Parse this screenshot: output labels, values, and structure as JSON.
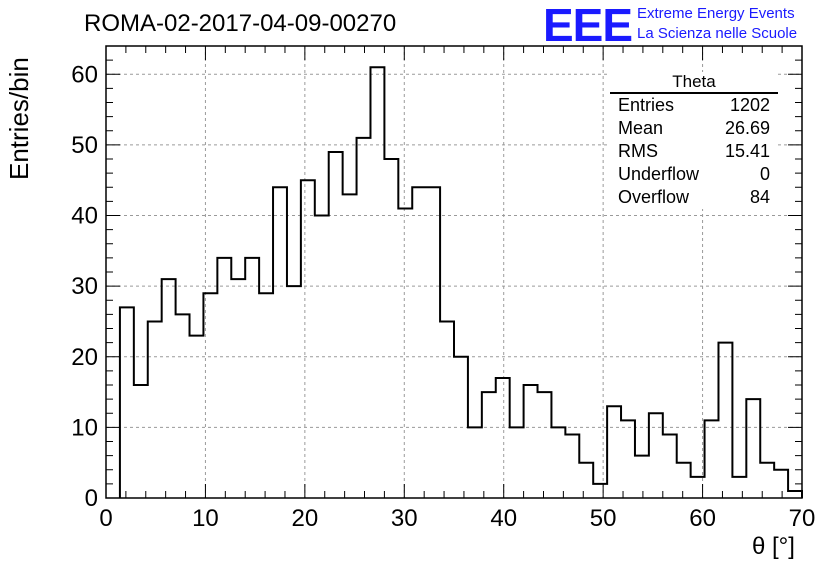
{
  "header": {
    "run_title": "ROMA-02-2017-04-09-00270",
    "logo": "EEE",
    "logo_line1": "Extreme Energy Events",
    "logo_line2": "La Scienza nelle Scuole"
  },
  "stats_box": {
    "title": "Theta",
    "rows": [
      {
        "label": "Entries",
        "value": "1202"
      },
      {
        "label": "Mean",
        "value": "26.69"
      },
      {
        "label": "RMS",
        "value": "15.41"
      },
      {
        "label": "Underflow",
        "value": "0"
      },
      {
        "label": "Overflow",
        "value": "84"
      }
    ]
  },
  "colors": {
    "line": "#000000",
    "grid": "#9a9a9a",
    "logo": "#1a1aff"
  },
  "chart_data": {
    "type": "bar",
    "style": "step-histogram",
    "xlabel": "θ [°]",
    "ylabel": "Entries/bin",
    "xlim": [
      0,
      70
    ],
    "ylim": [
      0,
      64
    ],
    "xticks": [
      0,
      10,
      20,
      30,
      40,
      50,
      60,
      70
    ],
    "yticks": [
      0,
      10,
      20,
      30,
      40,
      50,
      60
    ],
    "grid": true,
    "bin_start": 1.4,
    "bin_width": 1.4,
    "values": [
      27,
      16,
      25,
      31,
      26,
      23,
      29,
      34,
      31,
      34,
      29,
      44,
      30,
      45,
      40,
      49,
      43,
      51,
      61,
      48,
      41,
      44,
      44,
      25,
      20,
      10,
      15,
      17,
      10,
      16,
      15,
      10,
      9,
      5,
      2,
      13,
      11,
      6,
      12,
      9,
      5,
      3,
      11,
      22,
      3,
      14,
      5,
      4,
      1
    ]
  }
}
